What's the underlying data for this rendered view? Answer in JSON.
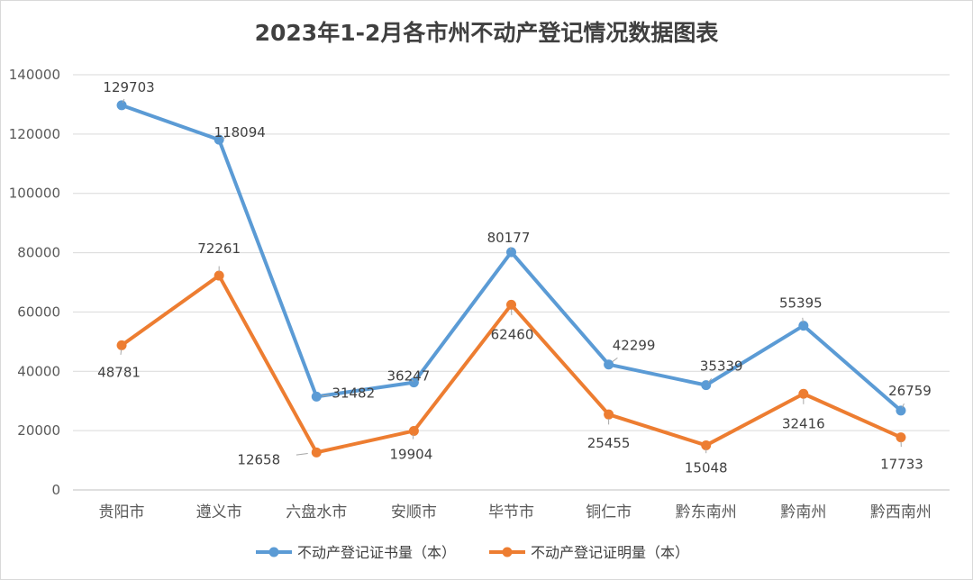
{
  "chart_data": {
    "type": "line",
    "title": "2023年1-2月各市州不动产登记情况数据图表",
    "xlabel": "",
    "ylabel": "",
    "ylim": [
      0,
      140000
    ],
    "yticks": [
      0,
      20000,
      40000,
      60000,
      80000,
      100000,
      120000,
      140000
    ],
    "yticks_text": [
      "0",
      "20000",
      "40000",
      "60000",
      "80000",
      "100000",
      "120000",
      "140000"
    ],
    "grid": true,
    "legend_position": "bottom",
    "categories": [
      "贵阳市",
      "遵义市",
      "六盘水市",
      "安顺市",
      "毕节市",
      "铜仁市",
      "黔东南州",
      "黔南州",
      "黔西南州"
    ],
    "series": [
      {
        "name": "不动产登记证书量（本）",
        "color": "#5b9bd5",
        "values": [
          129703,
          118094,
          31482,
          36247,
          80177,
          42299,
          35339,
          55395,
          26759
        ],
        "labels": [
          "129703",
          "118094",
          "31482",
          "36247",
          "80177",
          "42299",
          "35339",
          "55395",
          "26759"
        ]
      },
      {
        "name": "不动产登记证明量（本）",
        "color": "#ed7d31",
        "values": [
          48781,
          72261,
          12658,
          19904,
          62460,
          25455,
          15048,
          32416,
          17733
        ],
        "labels": [
          "48781",
          "72261",
          "12658",
          "19904",
          "62460",
          "25455",
          "15048",
          "32416",
          "17733"
        ]
      }
    ]
  }
}
